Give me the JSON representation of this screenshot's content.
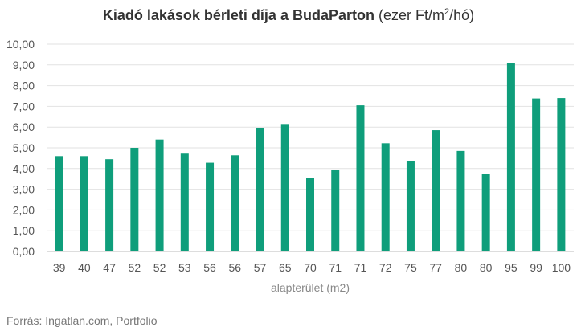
{
  "chart_data": {
    "type": "bar",
    "title": "Kiadó lakások bérleti díja a BudaParton",
    "title_unit_prefix": " (ezer Ft/m",
    "title_unit_sup": "2",
    "title_unit_suffix": "/hó)",
    "xlabel": "alapterület (m2)",
    "ylabel": "",
    "ylim": [
      0,
      10
    ],
    "yticks": [
      "0,00",
      "1,00",
      "2,00",
      "3,00",
      "4,00",
      "5,00",
      "6,00",
      "7,00",
      "8,00",
      "9,00",
      "10,00"
    ],
    "grid": true,
    "bar_color": "#0f9e7b",
    "categories": [
      "39",
      "40",
      "47",
      "52",
      "52",
      "53",
      "56",
      "56",
      "57",
      "65",
      "70",
      "71",
      "71",
      "72",
      "75",
      "77",
      "80",
      "80",
      "95",
      "99",
      "100"
    ],
    "values": [
      4.6,
      4.6,
      4.45,
      5.0,
      5.4,
      4.72,
      4.28,
      4.64,
      5.97,
      6.15,
      3.56,
      3.95,
      7.05,
      5.22,
      4.38,
      5.85,
      4.85,
      3.75,
      9.1,
      7.38,
      7.4
    ]
  },
  "source": "Forrás: Ingatlan.com, Portfolio"
}
